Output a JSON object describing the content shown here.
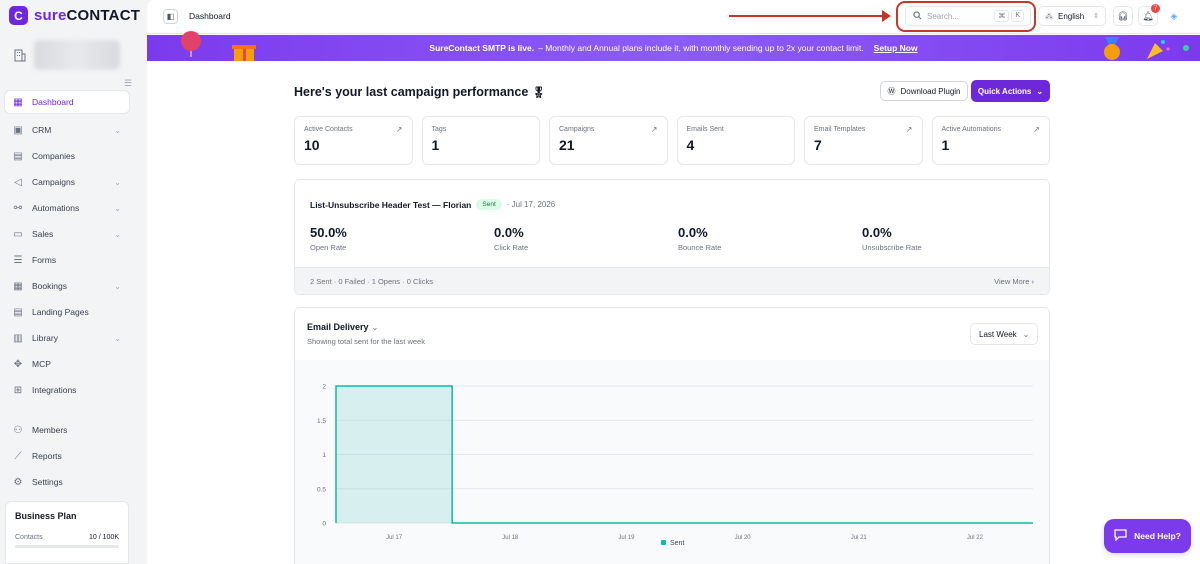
{
  "brand": {
    "logo_badge": "C",
    "name_sure": "sure",
    "name_contact": "CONTACT"
  },
  "sidebar": {
    "items": [
      {
        "label": "Dashboard",
        "icon": "grid-icon",
        "active": true
      },
      {
        "label": "CRM",
        "icon": "contact-card-icon",
        "chevron": true
      },
      {
        "label": "Companies",
        "icon": "building-icon"
      },
      {
        "label": "Campaigns",
        "icon": "megaphone-icon",
        "chevron": true
      },
      {
        "label": "Automations",
        "icon": "workflow-icon",
        "chevron": true
      },
      {
        "label": "Sales",
        "icon": "briefcase-icon",
        "chevron": true
      },
      {
        "label": "Forms",
        "icon": "form-icon"
      },
      {
        "label": "Bookings",
        "icon": "calendar-icon",
        "chevron": true
      },
      {
        "label": "Landing Pages",
        "icon": "layout-icon"
      },
      {
        "label": "Library",
        "icon": "library-icon",
        "chevron": true
      },
      {
        "label": "MCP",
        "icon": "mcp-icon"
      },
      {
        "label": "Integrations",
        "icon": "puzzle-icon"
      },
      {
        "label": "Members",
        "icon": "users-icon"
      },
      {
        "label": "Reports",
        "icon": "chart-icon"
      },
      {
        "label": "Settings",
        "icon": "gear-icon"
      }
    ],
    "plan": {
      "title": "Business Plan",
      "contacts_label": "Contacts",
      "contacts_value": "10 / 100K"
    }
  },
  "topbar": {
    "title": "Dashboard",
    "search_placeholder": "Search...",
    "kbd_cmd": "⌘",
    "kbd_key": "K",
    "language": "English",
    "notification_count": "7"
  },
  "banner": {
    "bold": "SureContact SMTP is live.",
    "text": "– Monthly and Annual plans include it, with monthly sending up to 2x your contact limit.",
    "link": "Setup Now"
  },
  "page": {
    "heading": "Here's your last campaign performance",
    "download_label": "Download Plugin",
    "quick_actions_label": "Quick Actions"
  },
  "stats": [
    {
      "label": "Active Contacts",
      "value": "10"
    },
    {
      "label": "Tags",
      "value": "1"
    },
    {
      "label": "Campaigns",
      "value": "21"
    },
    {
      "label": "Emails Sent",
      "value": "4"
    },
    {
      "label": "Email Templates",
      "value": "7"
    },
    {
      "label": "Active Automations",
      "value": "1"
    }
  ],
  "campaign": {
    "title": "List-Unsubscribe Header Test — Florian",
    "status": "Sent",
    "date": "· Jul 17, 2026",
    "metrics": [
      {
        "value": "50.0%",
        "label": "Open Rate"
      },
      {
        "value": "0.0%",
        "label": "Click Rate"
      },
      {
        "value": "0.0%",
        "label": "Bounce Rate"
      },
      {
        "value": "0.0%",
        "label": "Unsubscribe Rate"
      }
    ],
    "footer": "2 Sent · 0 Failed · 1 Opens · 0 Clicks",
    "view_more": "View More"
  },
  "delivery": {
    "title": "Email Delivery",
    "subtitle": "Showing total sent for the last week",
    "range": "Last Week"
  },
  "chart_data": {
    "type": "area",
    "categories": [
      "Jul 17",
      "Jul 18",
      "Jul 19",
      "Jul 20",
      "Jul 21",
      "Jul 22"
    ],
    "series": [
      {
        "name": "Sent",
        "values": [
          2,
          0,
          0,
          0,
          0,
          0
        ]
      }
    ],
    "y_ticks": [
      "0",
      "0.5",
      "1",
      "1.5",
      "2"
    ],
    "ylim": [
      0,
      2
    ],
    "grid": true,
    "legend": "bottom-center",
    "color": "#14b8a6"
  },
  "help_label": "Need Help?",
  "colors": {
    "accent": "#6d28d9",
    "banner": "#7c3aed",
    "series": "#14b8a6"
  }
}
